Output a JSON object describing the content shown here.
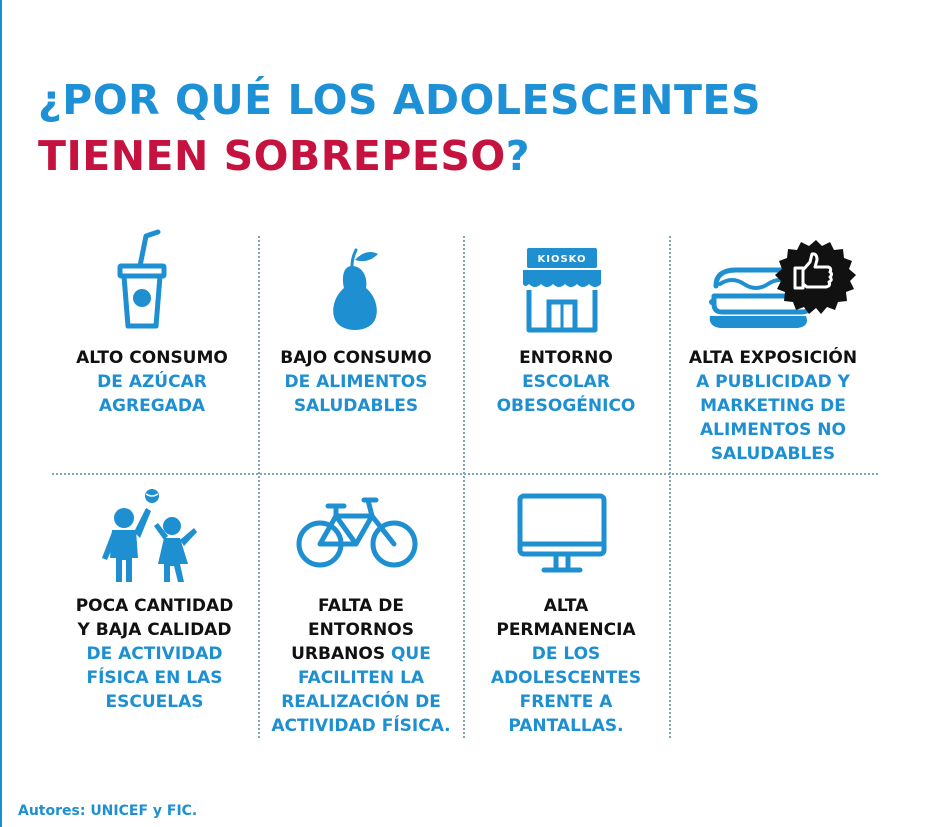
{
  "title": {
    "line1": "¿POR QUÉ LOS ADOLESCENTES",
    "line2": "TIENEN SOBREPESO",
    "qmark": "?"
  },
  "colors": {
    "blue": "#1e8fd1",
    "red": "#c5123e",
    "black": "#111111",
    "divider": "#7fa6b8"
  },
  "items": [
    {
      "icon": "drink-cup-icon",
      "black": [
        "ALTO CONSUMO"
      ],
      "blue": [
        "DE AZÚCAR",
        "AGREGADA"
      ]
    },
    {
      "icon": "pear-icon",
      "black": [
        "BAJO CONSUMO"
      ],
      "blue": [
        "DE ALIMENTOS",
        "SALUDABLES"
      ]
    },
    {
      "icon": "kiosk-icon",
      "icon_text": "KIOSKO",
      "black": [
        "ENTORNO"
      ],
      "blue": [
        "ESCOLAR",
        "OBESOGÉNICO"
      ]
    },
    {
      "icon": "hotdog-thumbs-up-icon",
      "black": [
        "ALTA EXPOSICIÓN"
      ],
      "blue": [
        "A PUBLICIDAD Y",
        "MARKETING DE",
        "ALIMENTOS NO",
        "SALUDABLES"
      ]
    },
    {
      "icon": "kids-playing-ball-icon",
      "black": [
        "POCA CANTIDAD",
        "Y  BAJA CALIDAD"
      ],
      "blue": [
        "DE ACTIVIDAD",
        "FÍSICA EN LAS",
        "ESCUELAS"
      ]
    },
    {
      "icon": "bicycle-icon",
      "black": [
        "FALTA DE",
        "ENTORNOS"
      ],
      "mixed_black": "URBANOS",
      "mixed_blue": " QUE",
      "blue": [
        "FACILITEN LA",
        "REALIZACIÓN DE",
        "ACTIVIDAD FÍSICA."
      ]
    },
    {
      "icon": "monitor-icon",
      "black": [
        "ALTA",
        "PERMANENCIA"
      ],
      "blue": [
        "DE LOS",
        "ADOLESCENTES",
        "FRENTE A",
        "PANTALLAS."
      ]
    }
  ],
  "footer": "Autores: UNICEF y FIC."
}
